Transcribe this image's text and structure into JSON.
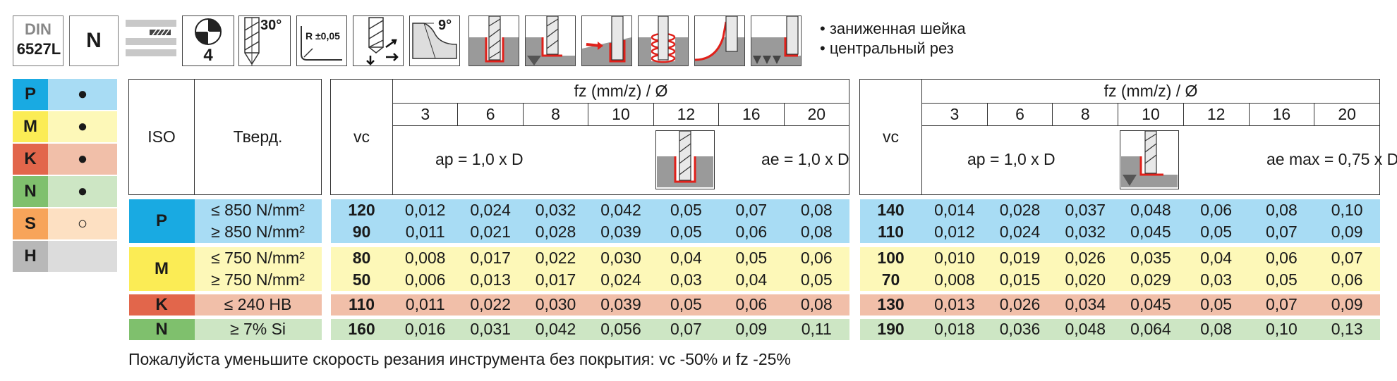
{
  "icons": {
    "din_label": "DIN",
    "din_number": "6527",
    "din_suffix": "L",
    "type_label": "N",
    "flutes": "4",
    "helix_angle": "30°",
    "corner_radius": "R ±0,05",
    "clearance_angle": "9°"
  },
  "features": [
    "• заниженная шейка",
    "• центральный рез"
  ],
  "iso_legend": [
    {
      "code": "P",
      "mark": "●",
      "color": "#19aae2",
      "bg": "#a8dcf4"
    },
    {
      "code": "M",
      "mark": "●",
      "color": "#fbec55",
      "bg": "#fdf8b8"
    },
    {
      "code": "K",
      "mark": "●",
      "color": "#e2664b",
      "bg": "#f1bfa9"
    },
    {
      "code": "N",
      "mark": "●",
      "color": "#7fc06d",
      "bg": "#cde6c4"
    },
    {
      "code": "S",
      "mark": "○",
      "color": "#f7a45a",
      "bg": "#fde0c2"
    },
    {
      "code": "H",
      "mark": "",
      "color": "#b8b8b8",
      "bg": "#dcdcdc"
    }
  ],
  "material_table": {
    "iso_header": "ISO",
    "hardness_header": "Тверд.",
    "rows": [
      {
        "group": "P",
        "hardness": [
          "≤ 850 N/mm²",
          "≥ 850 N/mm²"
        ]
      },
      {
        "group": "M",
        "hardness": [
          "≤ 750 N/mm²",
          "≥ 750 N/mm²"
        ]
      },
      {
        "group": "K",
        "hardness": [
          "≤ 240 HB"
        ]
      },
      {
        "group": "N",
        "hardness": [
          "≥ 7% Si"
        ]
      }
    ]
  },
  "table_left": {
    "vc_header": "vc",
    "fz_header": "fz (mm/z) / Ø",
    "diameters": [
      "3",
      "6",
      "8",
      "10",
      "12",
      "16",
      "20"
    ],
    "ap": "ap = 1,0 x D",
    "ae": "ae = 1,0 x D",
    "rows": [
      [
        "120",
        "0,012",
        "0,024",
        "0,032",
        "0,042",
        "0,05",
        "0,07",
        "0,08"
      ],
      [
        "90",
        "0,011",
        "0,021",
        "0,028",
        "0,039",
        "0,05",
        "0,06",
        "0,08"
      ],
      [
        "80",
        "0,008",
        "0,017",
        "0,022",
        "0,030",
        "0,04",
        "0,05",
        "0,06"
      ],
      [
        "50",
        "0,006",
        "0,013",
        "0,017",
        "0,024",
        "0,03",
        "0,04",
        "0,05"
      ],
      [
        "110",
        "0,011",
        "0,022",
        "0,030",
        "0,039",
        "0,05",
        "0,06",
        "0,08"
      ],
      [
        "160",
        "0,016",
        "0,031",
        "0,042",
        "0,056",
        "0,07",
        "0,09",
        "0,11"
      ]
    ]
  },
  "table_right": {
    "vc_header": "vc",
    "fz_header": "fz (mm/z) / Ø",
    "diameters": [
      "3",
      "6",
      "8",
      "10",
      "12",
      "16",
      "20"
    ],
    "ap": "ap = 1,0 x D",
    "ae": "ae max = 0,75 x D",
    "rows": [
      [
        "140",
        "0,014",
        "0,028",
        "0,037",
        "0,048",
        "0,06",
        "0,08",
        "0,10"
      ],
      [
        "110",
        "0,012",
        "0,024",
        "0,032",
        "0,045",
        "0,05",
        "0,07",
        "0,09"
      ],
      [
        "100",
        "0,010",
        "0,019",
        "0,026",
        "0,035",
        "0,04",
        "0,06",
        "0,07"
      ],
      [
        "70",
        "0,008",
        "0,015",
        "0,020",
        "0,029",
        "0,03",
        "0,05",
        "0,06"
      ],
      [
        "130",
        "0,013",
        "0,026",
        "0,034",
        "0,045",
        "0,05",
        "0,07",
        "0,09"
      ],
      [
        "190",
        "0,018",
        "0,036",
        "0,048",
        "0,064",
        "0,08",
        "0,10",
        "0,13"
      ]
    ]
  },
  "note": "Пожалуйста уменьшите скорость резания инструмента без покрытия: vc -50% и fz -25%"
}
